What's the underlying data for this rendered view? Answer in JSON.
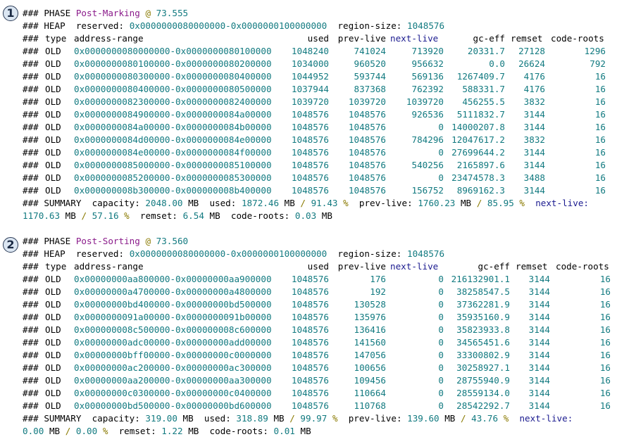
{
  "phases": [
    {
      "marker": "1",
      "phase_kw": "### PHASE",
      "phase_name": "Post-Marking",
      "at": "@",
      "time": "73.555",
      "heap_kw": "### HEAP",
      "reserved_label": "reserved:",
      "reserved_value": "0x0000000080000000-0x0000000100000000",
      "region_size_label": "region-size:",
      "region_size_value": "1048576",
      "header": {
        "prefix": "###",
        "type": "type",
        "address": "address-range",
        "used": "used",
        "prev_live": "prev-live",
        "next_live": "next-live",
        "gc_eff": "gc-eff",
        "remset": "remset",
        "code_roots": "code-roots"
      },
      "rows": [
        {
          "prefix": "###",
          "type": "OLD",
          "address": "0x0000000080000000-0x0000000080100000",
          "used": "1048240",
          "prev_live": "741024",
          "next_live": "713920",
          "gc_eff": "20331.7",
          "remset": "27128",
          "code_roots": "1296"
        },
        {
          "prefix": "###",
          "type": "OLD",
          "address": "0x0000000080100000-0x0000000080200000",
          "used": "1034000",
          "prev_live": "960520",
          "next_live": "956632",
          "gc_eff": "0.0",
          "remset": "26624",
          "code_roots": "792"
        },
        {
          "prefix": "###",
          "type": "OLD",
          "address": "0x0000000080300000-0x0000000080400000",
          "used": "1044952",
          "prev_live": "593744",
          "next_live": "569136",
          "gc_eff": "1267409.7",
          "remset": "4176",
          "code_roots": "16"
        },
        {
          "prefix": "###",
          "type": "OLD",
          "address": "0x0000000080400000-0x0000000080500000",
          "used": "1037944",
          "prev_live": "837368",
          "next_live": "762392",
          "gc_eff": "588331.7",
          "remset": "4176",
          "code_roots": "16"
        },
        {
          "prefix": "###",
          "type": "OLD",
          "address": "0x0000000082300000-0x0000000082400000",
          "used": "1039720",
          "prev_live": "1039720",
          "next_live": "1039720",
          "gc_eff": "456255.5",
          "remset": "3832",
          "code_roots": "16"
        },
        {
          "prefix": "###",
          "type": "OLD",
          "address": "0x0000000084900000-0x0000000084a00000",
          "used": "1048576",
          "prev_live": "1048576",
          "next_live": "926536",
          "gc_eff": "5111832.7",
          "remset": "3144",
          "code_roots": "16"
        },
        {
          "prefix": "###",
          "type": "OLD",
          "address": "0x0000000084a00000-0x0000000084b00000",
          "used": "1048576",
          "prev_live": "1048576",
          "next_live": "0",
          "gc_eff": "14000207.8",
          "remset": "3144",
          "code_roots": "16"
        },
        {
          "prefix": "###",
          "type": "OLD",
          "address": "0x0000000084d00000-0x0000000084e00000",
          "used": "1048576",
          "prev_live": "1048576",
          "next_live": "784296",
          "gc_eff": "12047617.2",
          "remset": "3832",
          "code_roots": "16"
        },
        {
          "prefix": "###",
          "type": "OLD",
          "address": "0x0000000084e00000-0x0000000084f00000",
          "used": "1048576",
          "prev_live": "1048576",
          "next_live": "0",
          "gc_eff": "27699644.2",
          "remset": "3144",
          "code_roots": "16"
        },
        {
          "prefix": "###",
          "type": "OLD",
          "address": "0x0000000085000000-0x0000000085100000",
          "used": "1048576",
          "prev_live": "1048576",
          "next_live": "540256",
          "gc_eff": "2165897.6",
          "remset": "3144",
          "code_roots": "16"
        },
        {
          "prefix": "###",
          "type": "OLD",
          "address": "0x0000000085200000-0x0000000085300000",
          "used": "1048576",
          "prev_live": "1048576",
          "next_live": "0",
          "gc_eff": "23474578.3",
          "remset": "3488",
          "code_roots": "16"
        },
        {
          "prefix": "###",
          "type": "OLD",
          "address": "0x000000008b300000-0x000000008b400000",
          "used": "1048576",
          "prev_live": "1048576",
          "next_live": "156752",
          "gc_eff": "8969162.3",
          "remset": "3144",
          "code_roots": "16"
        }
      ],
      "summary": {
        "kw": "### SUMMARY",
        "capacity_label": "capacity:",
        "capacity": "2048.00",
        "mb1": "MB",
        "used_label": "used:",
        "used": "1872.46",
        "mb2": "MB",
        "slash1": "/",
        "used_pct": "91.43",
        "pct1": "%",
        "prev_live_label": "prev-live:",
        "prev_live": "1760.23",
        "mb3": "MB",
        "slash2": "/",
        "prev_live_pct": "85.95",
        "pct2": "%",
        "next_live_label": "next-live:",
        "next_live": "1170.63",
        "mb4": "MB",
        "slash3": "/",
        "next_live_pct": "57.16",
        "pct3": "%",
        "remset_label": "remset:",
        "remset": "6.54",
        "mb5": "MB",
        "code_roots_label": "code-roots:",
        "code_roots": "0.03",
        "mb6": "MB"
      }
    },
    {
      "marker": "2",
      "phase_kw": "### PHASE",
      "phase_name": "Post-Sorting",
      "at": "@",
      "time": "73.560",
      "heap_kw": "### HEAP",
      "reserved_label": "reserved:",
      "reserved_value": "0x0000000080000000-0x0000000100000000",
      "region_size_label": "region-size:",
      "region_size_value": "1048576",
      "header": {
        "prefix": "###",
        "type": "type",
        "address": "address-range",
        "used": "used",
        "prev_live": "prev-live",
        "next_live": "next-live",
        "gc_eff": "gc-eff",
        "remset": "remset",
        "code_roots": "code-roots"
      },
      "rows": [
        {
          "prefix": "###",
          "type": "OLD",
          "address": "0x00000000aa800000-0x00000000aa900000",
          "used": "1048576",
          "prev_live": "176",
          "next_live": "0",
          "gc_eff": "216132901.1",
          "remset": "3144",
          "code_roots": "16"
        },
        {
          "prefix": "###",
          "type": "OLD",
          "address": "0x00000000a4700000-0x00000000a4800000",
          "used": "1048576",
          "prev_live": "192",
          "next_live": "0",
          "gc_eff": "38258547.5",
          "remset": "3144",
          "code_roots": "16"
        },
        {
          "prefix": "###",
          "type": "OLD",
          "address": "0x00000000bd400000-0x00000000bd500000",
          "used": "1048576",
          "prev_live": "130528",
          "next_live": "0",
          "gc_eff": "37362281.9",
          "remset": "3144",
          "code_roots": "16"
        },
        {
          "prefix": "###",
          "type": "OLD",
          "address": "0x0000000091a00000-0x0000000091b00000",
          "used": "1048576",
          "prev_live": "135976",
          "next_live": "0",
          "gc_eff": "35935160.9",
          "remset": "3144",
          "code_roots": "16"
        },
        {
          "prefix": "###",
          "type": "OLD",
          "address": "0x000000008c500000-0x000000008c600000",
          "used": "1048576",
          "prev_live": "136416",
          "next_live": "0",
          "gc_eff": "35823933.8",
          "remset": "3144",
          "code_roots": "16"
        },
        {
          "prefix": "###",
          "type": "OLD",
          "address": "0x00000000adc00000-0x00000000add00000",
          "used": "1048576",
          "prev_live": "141560",
          "next_live": "0",
          "gc_eff": "34565451.6",
          "remset": "3144",
          "code_roots": "16"
        },
        {
          "prefix": "###",
          "type": "OLD",
          "address": "0x00000000bff00000-0x00000000c0000000",
          "used": "1048576",
          "prev_live": "147056",
          "next_live": "0",
          "gc_eff": "33300802.9",
          "remset": "3144",
          "code_roots": "16"
        },
        {
          "prefix": "###",
          "type": "OLD",
          "address": "0x00000000ac200000-0x00000000ac300000",
          "used": "1048576",
          "prev_live": "100656",
          "next_live": "0",
          "gc_eff": "30258927.1",
          "remset": "3144",
          "code_roots": "16"
        },
        {
          "prefix": "###",
          "type": "OLD",
          "address": "0x00000000aa200000-0x00000000aa300000",
          "used": "1048576",
          "prev_live": "109456",
          "next_live": "0",
          "gc_eff": "28755940.9",
          "remset": "3144",
          "code_roots": "16"
        },
        {
          "prefix": "###",
          "type": "OLD",
          "address": "0x00000000c0300000-0x00000000c0400000",
          "used": "1048576",
          "prev_live": "110664",
          "next_live": "0",
          "gc_eff": "28559134.0",
          "remset": "3144",
          "code_roots": "16"
        },
        {
          "prefix": "###",
          "type": "OLD",
          "address": "0x00000000bd500000-0x00000000bd600000",
          "used": "1048576",
          "prev_live": "110768",
          "next_live": "0",
          "gc_eff": "28542292.7",
          "remset": "3144",
          "code_roots": "16"
        }
      ],
      "summary": {
        "kw": "### SUMMARY",
        "capacity_label": "capacity:",
        "capacity": "319.00",
        "mb1": "MB",
        "used_label": "used:",
        "used": "318.89",
        "mb2": "MB",
        "slash1": "/",
        "used_pct": "99.97",
        "pct1": "%",
        "prev_live_label": "prev-live:",
        "prev_live": "139.60",
        "mb3": "MB",
        "slash2": "/",
        "prev_live_pct": "43.76",
        "pct2": "%",
        "next_live_label": "next-live:",
        "next_live": "0.00",
        "mb4": "MB",
        "slash3": "/",
        "next_live_pct": "0.00",
        "pct3": "%",
        "remset_label": "remset:",
        "remset": "1.22",
        "mb5": "MB",
        "code_roots_label": "code-roots:",
        "code_roots": "0.01",
        "mb6": "MB"
      }
    }
  ]
}
